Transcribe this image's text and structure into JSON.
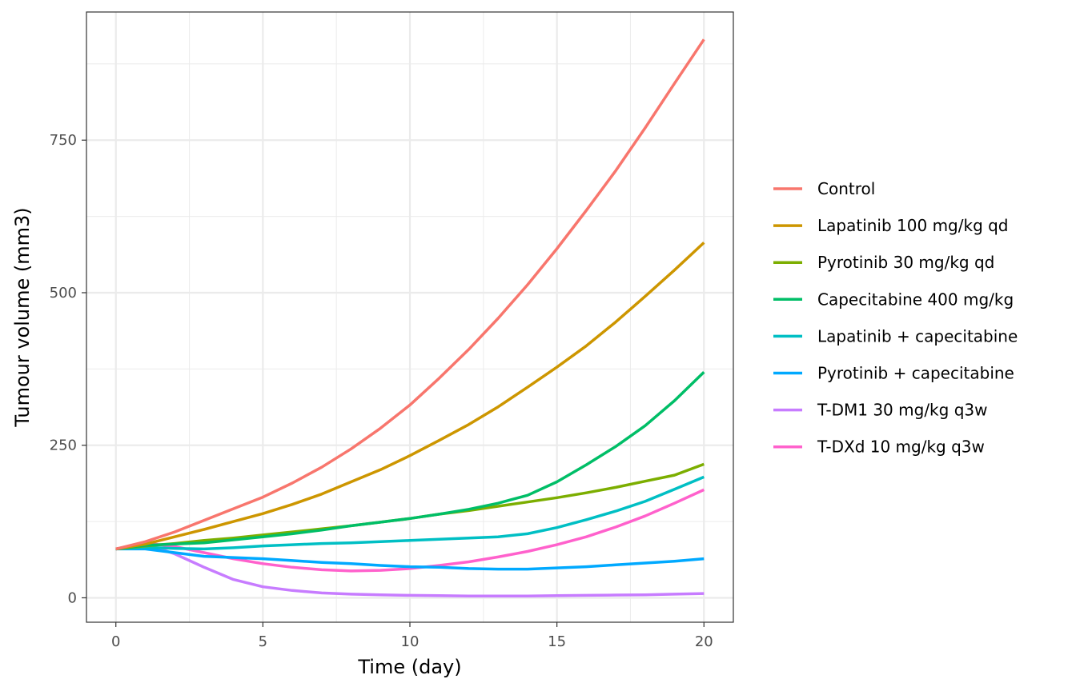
{
  "chart_data": {
    "type": "line",
    "title": "",
    "xlabel": "Time (day)",
    "ylabel": "Tumour volume (mm3)",
    "xlim": [
      -1,
      21
    ],
    "ylim": [
      -40,
      960
    ],
    "x_ticks": [
      0,
      5,
      10,
      15,
      20
    ],
    "y_ticks": [
      0,
      250,
      500,
      750
    ],
    "grid": true,
    "legend_position": "right",
    "x": [
      0,
      1,
      2,
      3,
      4,
      5,
      6,
      7,
      8,
      9,
      10,
      11,
      12,
      13,
      14,
      15,
      16,
      17,
      18,
      19,
      20
    ],
    "series": [
      {
        "name": "Control",
        "color": "#F8766D",
        "values": [
          80,
          92,
          108,
          127,
          146,
          165,
          188,
          214,
          244,
          278,
          316,
          360,
          407,
          458,
          513,
          572,
          635,
          700,
          770,
          843,
          915
        ]
      },
      {
        "name": "Lapatinib 100 mg/kg qd",
        "color": "#CD9600",
        "values": [
          80,
          88,
          100,
          112,
          125,
          138,
          153,
          170,
          190,
          210,
          233,
          258,
          284,
          313,
          345,
          378,
          413,
          452,
          494,
          537,
          582
        ]
      },
      {
        "name": "Pyrotinib 30 mg/kg qd",
        "color": "#7CAE00",
        "values": [
          80,
          85,
          89,
          94,
          98,
          103,
          108,
          113,
          118,
          124,
          130,
          137,
          143,
          150,
          157,
          164,
          172,
          181,
          191,
          201,
          219
        ]
      },
      {
        "name": "Capecitabine 400 mg/kg",
        "color": "#00BE67",
        "values": [
          80,
          86,
          88,
          90,
          95,
          100,
          105,
          111,
          118,
          124,
          130,
          137,
          145,
          155,
          168,
          190,
          218,
          248,
          282,
          323,
          370
        ]
      },
      {
        "name": "Lapatinib + capecitabine",
        "color": "#00BFC4",
        "values": [
          80,
          83,
          81,
          80,
          82,
          85,
          87,
          89,
          90,
          92,
          94,
          96,
          98,
          100,
          105,
          115,
          128,
          142,
          158,
          178,
          198
        ]
      },
      {
        "name": "Pyrotinib + capecitabine",
        "color": "#00A9FF",
        "values": [
          80,
          80,
          74,
          68,
          66,
          64,
          61,
          58,
          56,
          53,
          51,
          50,
          48,
          47,
          47,
          49,
          51,
          54,
          57,
          60,
          64
        ]
      },
      {
        "name": "T-DM1 30 mg/kg q3w",
        "color": "#C77CFF",
        "values": [
          80,
          88,
          72,
          50,
          30,
          18,
          12,
          8,
          6,
          5,
          4,
          3.5,
          3,
          3,
          3,
          3.5,
          4,
          4.5,
          5,
          6,
          7
        ]
      },
      {
        "name": "T-DXd 10 mg/kg q3w",
        "color": "#FF61CC",
        "values": [
          80,
          90,
          84,
          74,
          64,
          56,
          50,
          46,
          44,
          45,
          48,
          53,
          59,
          67,
          76,
          87,
          100,
          116,
          134,
          155,
          177
        ]
      }
    ]
  }
}
